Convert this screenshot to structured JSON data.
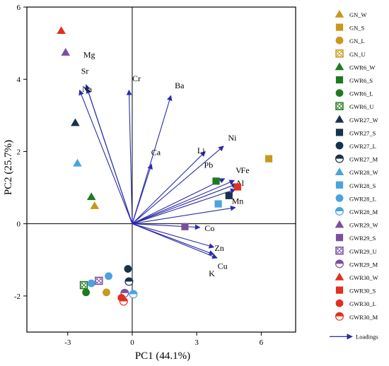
{
  "chart_data": {
    "type": "scatter",
    "title": "",
    "xlabel": "PC1 (44.1%)",
    "ylabel": "PC2 (25.7%)",
    "xlim": [
      -4.9,
      7.6
    ],
    "ylim": [
      -3,
      6
    ],
    "x_ticks": [
      -3,
      0,
      3,
      6
    ],
    "y_ticks": [
      -2,
      0,
      2,
      4,
      6
    ],
    "colors": {
      "GN": "#c9981c",
      "GWR6": "#1f7a1f",
      "GWR27": "#16324f",
      "GWR28": "#4aa3df",
      "GWR29": "#7c4f9e",
      "GWR30": "#e0301e",
      "loadings": "#2b2ba8"
    },
    "marker_styles": {
      "W": "triangle",
      "S": "square",
      "L": "circle",
      "U": "hatched-square",
      "M": "half-circle"
    },
    "series": [
      {
        "name": "GN_W",
        "group": "GN",
        "marker": "W",
        "points": []
      },
      {
        "name": "GN_S",
        "group": "GN",
        "marker": "S",
        "points": [
          [
            6.35,
            1.8
          ]
        ]
      },
      {
        "name": "GN_L",
        "group": "GN",
        "marker": "L",
        "points": [
          [
            -1.2,
            -1.9
          ]
        ]
      },
      {
        "name": "GN_U",
        "group": "GN",
        "marker": "U",
        "points": []
      },
      {
        "name": "GWR6_W",
        "group": "GWR6",
        "marker": "W",
        "points": [
          [
            -1.9,
            0.75
          ]
        ]
      },
      {
        "name": "GWR6_S",
        "group": "GWR6",
        "marker": "S",
        "points": [
          [
            3.9,
            1.18
          ]
        ]
      },
      {
        "name": "GWR6_L",
        "group": "GWR6",
        "marker": "L",
        "points": [
          [
            -2.15,
            -1.9
          ]
        ]
      },
      {
        "name": "GWR6_U",
        "group": "GWR6",
        "marker": "U",
        "points": [
          [
            -2.25,
            -1.7
          ]
        ]
      },
      {
        "name": "GWR27_W",
        "group": "GWR27",
        "marker": "W",
        "points": [
          [
            -2.65,
            2.8
          ]
        ]
      },
      {
        "name": "GWR27_S",
        "group": "GWR27",
        "marker": "S",
        "points": [
          [
            4.5,
            0.78
          ]
        ]
      },
      {
        "name": "GWR27_L",
        "group": "GWR27",
        "marker": "L",
        "points": [
          [
            -0.2,
            -1.25
          ]
        ]
      },
      {
        "name": "GWR27_M",
        "group": "GWR27",
        "marker": "M",
        "points": [
          [
            -0.15,
            -1.6
          ]
        ]
      },
      {
        "name": "GWR28_W",
        "group": "GWR28",
        "marker": "W",
        "points": [
          [
            -2.55,
            1.68
          ]
        ]
      },
      {
        "name": "GWR28_S",
        "group": "GWR28",
        "marker": "S",
        "points": [
          [
            4.0,
            0.55
          ]
        ]
      },
      {
        "name": "GWR28_L",
        "group": "GWR28",
        "marker": "L",
        "points": [
          [
            -1.9,
            -1.65
          ],
          [
            -1.1,
            -1.45
          ]
        ]
      },
      {
        "name": "GWR28_M",
        "group": "GWR28",
        "marker": "M",
        "points": [
          [
            0.05,
            -1.95
          ]
        ]
      },
      {
        "name": "GWR29_W",
        "group": "GWR29",
        "marker": "W",
        "points": [
          [
            -3.1,
            4.75
          ]
        ]
      },
      {
        "name": "GWR29_S",
        "group": "GWR29",
        "marker": "S",
        "points": [
          [
            2.45,
            -0.08
          ]
        ]
      },
      {
        "name": "GWR29_U",
        "group": "GWR29",
        "marker": "U",
        "points": [
          [
            -1.55,
            -1.58
          ]
        ]
      },
      {
        "name": "GWR29_M",
        "group": "GWR29",
        "marker": "M",
        "points": [
          [
            -0.35,
            -1.92
          ]
        ]
      },
      {
        "name": "GWR30_W",
        "group": "GWR30",
        "marker": "W",
        "points": [
          [
            -3.3,
            5.35
          ]
        ]
      },
      {
        "name": "GWR30_S",
        "group": "GWR30",
        "marker": "S",
        "points": [
          [
            4.9,
            1.02
          ]
        ]
      },
      {
        "name": "GWR30_L",
        "group": "GWR30",
        "marker": "L",
        "points": [
          [
            -0.5,
            -2.05
          ]
        ]
      },
      {
        "name": "GWR30_M",
        "group": "GWR30",
        "marker": "M",
        "points": [
          [
            -0.4,
            -2.15
          ]
        ]
      },
      {
        "name": "GWR6_W (2)",
        "group": "GWR6",
        "marker": "W",
        "points": []
      },
      {
        "name": "GN_W (2)",
        "group": "GN",
        "marker": "W",
        "points": [
          [
            -1.75,
            0.5
          ]
        ]
      }
    ],
    "loadings": [
      {
        "label": "Mg",
        "x": -2.15,
        "y": 3.85,
        "lx": -2.0,
        "ly": 4.6
      },
      {
        "label": "Sr",
        "x": -2.1,
        "y": 3.75,
        "lx": -2.2,
        "ly": 4.15
      },
      {
        "label": "Na",
        "x": -2.45,
        "y": 3.7,
        "lx": -2.1,
        "ly": 3.65
      },
      {
        "label": "Cr",
        "x": -0.15,
        "y": 3.7,
        "lx": 0.2,
        "ly": 3.95
      },
      {
        "label": "Ba",
        "x": 1.8,
        "y": 3.55,
        "lx": 2.2,
        "ly": 3.75
      },
      {
        "label": "Ca",
        "x": 0.9,
        "y": 1.65,
        "lx": 1.1,
        "ly": 1.9
      },
      {
        "label": "Li",
        "x": 3.4,
        "y": 2.0,
        "lx": 3.2,
        "ly": 1.95
      },
      {
        "label": "Ni",
        "x": 4.25,
        "y": 2.15,
        "lx": 4.65,
        "ly": 2.3
      },
      {
        "label": "Pb",
        "x": 4.3,
        "y": 1.25,
        "lx": 3.55,
        "ly": 1.55
      },
      {
        "label": "V",
        "x": 4.75,
        "y": 1.2,
        "lx": 4.95,
        "ly": 1.4
      },
      {
        "label": "Fe",
        "x": 4.85,
        "y": 1.1,
        "lx": 5.25,
        "ly": 1.4
      },
      {
        "label": "Al",
        "x": 4.8,
        "y": 0.95,
        "lx": 5.0,
        "ly": 1.05
      },
      {
        "label": "Mn",
        "x": 4.8,
        "y": 0.45,
        "lx": 4.9,
        "ly": 0.55
      },
      {
        "label": "Co",
        "x": 3.15,
        "y": -0.1,
        "lx": 3.6,
        "ly": -0.2
      },
      {
        "label": "Zn",
        "x": 3.8,
        "y": -0.65,
        "lx": 4.05,
        "ly": -0.75
      },
      {
        "label": "Cu",
        "x": 3.8,
        "y": -0.85,
        "lx": 4.2,
        "ly": -1.25
      },
      {
        "label": "K",
        "x": 3.95,
        "y": -0.95,
        "lx": 3.7,
        "ly": -1.45
      }
    ],
    "legend": {
      "placement": "right",
      "entries": [
        {
          "label": "GN_W",
          "group": "GN",
          "marker": "W"
        },
        {
          "label": "GN_S",
          "group": "GN",
          "marker": "S"
        },
        {
          "label": "GN_L",
          "group": "GN",
          "marker": "L"
        },
        {
          "label": "GN_U",
          "group": "GN",
          "marker": "U"
        },
        {
          "label": "GWR6_W",
          "group": "GWR6",
          "marker": "W"
        },
        {
          "label": "GWR6_S",
          "group": "GWR6",
          "marker": "S"
        },
        {
          "label": "GWR6_L",
          "group": "GWR6",
          "marker": "L"
        },
        {
          "label": "GWR6_U",
          "group": "GWR6",
          "marker": "U"
        },
        {
          "label": "GWR27_W",
          "group": "GWR27",
          "marker": "W"
        },
        {
          "label": "GWR27_S",
          "group": "GWR27",
          "marker": "S"
        },
        {
          "label": "GWR27_L",
          "group": "GWR27",
          "marker": "L"
        },
        {
          "label": "GWR27_M",
          "group": "GWR27",
          "marker": "M"
        },
        {
          "label": "GWR28_W",
          "group": "GWR28",
          "marker": "W"
        },
        {
          "label": "GWR28_S",
          "group": "GWR28",
          "marker": "S"
        },
        {
          "label": "GWR28_L",
          "group": "GWR28",
          "marker": "L"
        },
        {
          "label": "GWR28_M",
          "group": "GWR28",
          "marker": "M"
        },
        {
          "label": "GWR29_W",
          "group": "GWR29",
          "marker": "W"
        },
        {
          "label": "GWR29_S",
          "group": "GWR29",
          "marker": "S"
        },
        {
          "label": "GWR29_U",
          "group": "GWR29",
          "marker": "U"
        },
        {
          "label": "GWR29_M",
          "group": "GWR29",
          "marker": "M"
        },
        {
          "label": "GWR30_W",
          "group": "GWR30",
          "marker": "W"
        },
        {
          "label": "GWR30_S",
          "group": "GWR30",
          "marker": "S"
        },
        {
          "label": "GWR30_L",
          "group": "GWR30",
          "marker": "L"
        },
        {
          "label": "GWR30_M",
          "group": "GWR30",
          "marker": "M"
        }
      ],
      "loadings_label": "Loadings"
    }
  }
}
